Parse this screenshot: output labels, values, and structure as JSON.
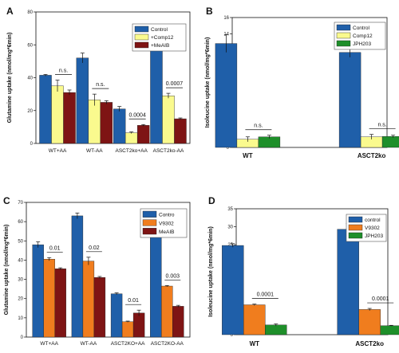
{
  "chart_data": [
    {
      "panel": "A",
      "type": "bar",
      "ylabel": "Glutamine uptake (nmol/mg*6min)",
      "ylim": [
        0,
        80
      ],
      "yticks": [
        0,
        20,
        40,
        60,
        80
      ],
      "categories": [
        "WT+AA",
        "WT-AA",
        "ASCT2ko+AA",
        "ASCT2ko-AA"
      ],
      "series": [
        {
          "name": "Control",
          "color": "#1f5fa9",
          "values": [
            41.5,
            52,
            21,
            66.5
          ],
          "errors": [
            0.5,
            3,
            1.5,
            3.5
          ]
        },
        {
          "name": "+Comp12",
          "color": "#fafa8e",
          "values": [
            35,
            26.5,
            6.5,
            29
          ],
          "errors": [
            3.5,
            3.5,
            0.5,
            1.5
          ]
        },
        {
          "name": "+MeAIB",
          "color": "#7e1414",
          "values": [
            31,
            25,
            11,
            15
          ],
          "errors": [
            1.5,
            1,
            0.5,
            0.5
          ]
        }
      ],
      "annotations": [
        {
          "category": 0,
          "text": "n.s."
        },
        {
          "category": 1,
          "text": "n.s."
        },
        {
          "category": 2,
          "text": "0.0004"
        },
        {
          "category": 3,
          "text": "0.0007"
        }
      ],
      "legend": "top-right"
    },
    {
      "panel": "B",
      "type": "bar",
      "ylabel": "Isoleucine uptake (nmol/mg*6min)",
      "ylim": [
        0,
        16
      ],
      "yticks": [
        0,
        2,
        4,
        6,
        8,
        10,
        12,
        14,
        16
      ],
      "categories": [
        "WT",
        "ASCT2ko"
      ],
      "series": [
        {
          "name": "Control",
          "color": "#1f5fa9",
          "values": [
            12.8,
            11.7
          ],
          "errors": [
            1.1,
            0.6
          ]
        },
        {
          "name": "Comp12",
          "color": "#fafa8e",
          "values": [
            1.0,
            1.3
          ],
          "errors": [
            0.3,
            0.3
          ]
        },
        {
          "name": "JPH203",
          "color": "#1e8f2a",
          "values": [
            1.3,
            1.35
          ],
          "errors": [
            0.2,
            0.15
          ]
        }
      ],
      "annotations": [
        {
          "category": 0,
          "text": "n.s."
        },
        {
          "category": 1,
          "text": "n.s."
        }
      ],
      "legend": "top-right"
    },
    {
      "panel": "C",
      "type": "bar",
      "ylabel": "Glutamine uptake (nmol/mg*6min)",
      "ylim": [
        0,
        70
      ],
      "yticks": [
        0,
        10,
        20,
        30,
        40,
        50,
        60,
        70
      ],
      "categories": [
        "WT+AA",
        "WT-AA",
        "ASCT2KO+AA",
        "ASCT2KO-AA"
      ],
      "series": [
        {
          "name": "Contro",
          "color": "#1f5fa9",
          "values": [
            48,
            63,
            22.5,
            53.5
          ],
          "errors": [
            1.5,
            1.5,
            0.5,
            1
          ]
        },
        {
          "name": "V9302",
          "color": "#f07d1e",
          "values": [
            40.5,
            39.5,
            8,
            26.5
          ],
          "errors": [
            0.8,
            2,
            0.3,
            0.3
          ]
        },
        {
          "name": "MeAIB",
          "color": "#7e1414",
          "values": [
            35.5,
            31,
            12.5,
            16
          ],
          "errors": [
            0.5,
            0.5,
            1.5,
            0.5
          ]
        }
      ],
      "annotations": [
        {
          "category": 0,
          "text": "0.01"
        },
        {
          "category": 1,
          "text": "0.02"
        },
        {
          "category": 2,
          "text": "0.01"
        },
        {
          "category": 3,
          "text": "0.003"
        }
      ],
      "legend": "top-right"
    },
    {
      "panel": "D",
      "type": "bar",
      "ylabel": "Isoleucine uptake (nmol/mg*6min)",
      "ylim": [
        0,
        35
      ],
      "yticks": [
        0,
        5,
        10,
        15,
        20,
        25,
        30,
        35
      ],
      "categories": [
        "WT",
        "ASCT2ko"
      ],
      "series": [
        {
          "name": "control",
          "color": "#1f5fa9",
          "values": [
            24.8,
            29.3
          ],
          "errors": [
            0.5,
            1.6
          ]
        },
        {
          "name": "V9302",
          "color": "#f07d1e",
          "values": [
            8.3,
            7.0
          ],
          "errors": [
            0.2,
            0.3
          ]
        },
        {
          "name": "JPH203",
          "color": "#1e8f2a",
          "values": [
            2.7,
            2.5
          ],
          "errors": [
            0.3,
            0.1
          ]
        }
      ],
      "annotations": [
        {
          "category": 0,
          "text": "0.0001"
        },
        {
          "category": 1,
          "text": "0.0001"
        }
      ],
      "legend": "top-right"
    }
  ]
}
